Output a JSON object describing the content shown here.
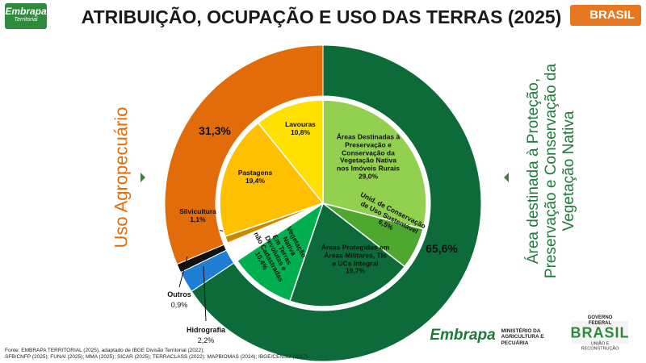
{
  "header": {
    "logo_left": "Embrapa",
    "logo_left_sub": "Territorial",
    "logo_right": "BRASIL"
  },
  "chart_data": {
    "type": "donut",
    "title": "ATRIBUIÇÃO, OCUPAÇÃO E USO DAS TERRAS (2025)",
    "outer": {
      "categories": [
        "Área destinada à Proteção,\nPreservação e Conservação da\nVegetação Nativa",
        "Hidrografia",
        "Outros",
        "Uso Agropecuário"
      ],
      "values": [
        65.6,
        2.2,
        0.9,
        31.3
      ],
      "value_labels": [
        "65,6%",
        "2,2%",
        "0,9%",
        "31,3%"
      ],
      "colors": [
        "#0d6b3a",
        "#1f7fd4",
        "#111111",
        "#e36c0a"
      ]
    },
    "inner": {
      "categories": [
        "Áreas Destinadas à\nPreservação e\nConservação da\nVegetação Nativa\nnos Imóveis Rurais",
        "Unid. de Conservação\nde Uso Sustentável",
        "Áreas Protegidas em\nÁreas Militares, TIs\ne UCs Integral",
        "Vegetação\nNativa\nEm Terras\nDevolutas e\nnão Cadastradas",
        "Silvicultura",
        "Pastagens",
        "Lavouras"
      ],
      "values": [
        29.0,
        6.5,
        19.7,
        10.4,
        1.1,
        19.4,
        10.8
      ],
      "value_labels": [
        "29,0%",
        "6,5%",
        "19,7%",
        "10,4%",
        "1,1%",
        "19,4%",
        "10,8%"
      ],
      "colors": [
        "#92d050",
        "#4ea72e",
        "#0d6b3a",
        "#00b050",
        "#c98a00",
        "#ffc000",
        "#ffe000"
      ]
    }
  },
  "footer": {
    "source": "Fonte: EMBRAPA TERRITORIAL (2025), adaptado de IBGE Divisão Territorial (2022);\nSFB/CNFP (2025); FUNAI (2025); MMA (2025); SICAR (2025); TERRACLASS (2022); MAPBIOMAS (2024); IBGE/CENSO (2017)",
    "logo_embrapa": "Embrapa",
    "ministry": "MINISTÉRIO DA\nAGRICULTURA E\nPECUÁRIA",
    "gov_top": "GOVERNO FEDERAL",
    "gov_main": "BRASIL",
    "gov_bottom": "UNIÃO E RECONSTRUÇÃO"
  }
}
